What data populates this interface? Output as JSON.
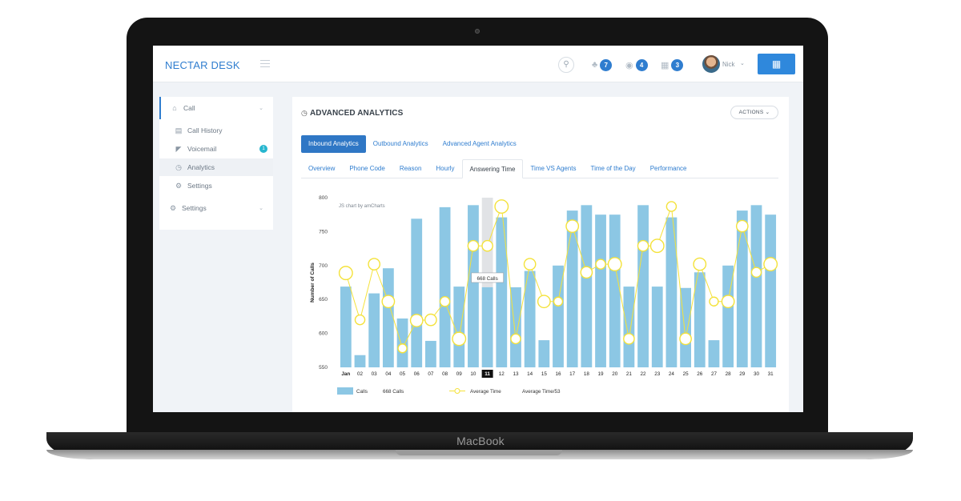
{
  "device": {
    "brand_label": "MacBook"
  },
  "app": {
    "logo": "NECTAR DESK",
    "search_icon": "search-icon",
    "notifications": [
      {
        "icon": "bell-icon",
        "count": "7"
      },
      {
        "icon": "headset-icon",
        "count": "4"
      },
      {
        "icon": "calendar-icon",
        "count": "3"
      }
    ],
    "user": {
      "name": "Nick"
    },
    "apps_icon": "grid-icon"
  },
  "sidebar": {
    "call": {
      "label": "Call",
      "icon": "home-icon"
    },
    "items": [
      {
        "label": "Call History",
        "icon": "list-icon"
      },
      {
        "label": "Voicemail",
        "icon": "voicemail-icon",
        "badge": "1"
      },
      {
        "label": "Analytics",
        "icon": "chart-icon"
      },
      {
        "label": "Settings",
        "icon": "gear-icon"
      }
    ],
    "settings": {
      "label": "Settings",
      "icon": "gear-icon"
    }
  },
  "panel": {
    "title": "ADVANCED ANALYTICS",
    "actions_label": "ACTIONS",
    "tabs": [
      "Inbound Analytics",
      "Outbound Analytics",
      "Advanced Agent Analytics"
    ],
    "active_tab": 0,
    "subtabs": [
      "Overview",
      "Phone Code",
      "Reason",
      "Hourly",
      "Answering Time",
      "Time VS Agents",
      "Time of the Day",
      "Performance"
    ],
    "active_subtab": 4
  },
  "chart_data": {
    "type": "bar",
    "credit": "JS chart by amCharts",
    "ylabel": "Number of Calls",
    "ylim": [
      550,
      800
    ],
    "yticks": [
      550,
      600,
      650,
      700,
      750,
      800
    ],
    "categories": [
      "Jan",
      "02",
      "03",
      "04",
      "05",
      "06",
      "07",
      "08",
      "09",
      "10",
      "11",
      "12",
      "13",
      "14",
      "15",
      "16",
      "17",
      "18",
      "19",
      "20",
      "21",
      "22",
      "23",
      "24",
      "25",
      "26",
      "27",
      "28",
      "29",
      "30",
      "31"
    ],
    "highlighted_category": "11",
    "series": [
      {
        "name": "Calls",
        "type": "bar",
        "color": "#8cc7e4",
        "values": [
          669,
          568,
          659,
          696,
          622,
          769,
          589,
          786,
          669,
          789,
          668,
          771,
          668,
          692,
          590,
          700,
          781,
          789,
          775,
          775,
          669,
          789,
          669,
          771,
          667,
          690,
          590,
          700,
          781,
          789,
          775
        ]
      },
      {
        "name": "Average Time",
        "type": "line",
        "color": "#f4e23a",
        "values": [
          689,
          620,
          702,
          647,
          578,
          619,
          620,
          647,
          592,
          729,
          729,
          787,
          592,
          702,
          647,
          647,
          758,
          690,
          702,
          702,
          592,
          729,
          729,
          787,
          592,
          702,
          647,
          647,
          758,
          690,
          702
        ]
      }
    ],
    "tooltip": "668 Calls",
    "legend": [
      {
        "label": "Calls",
        "value": "668 Calls"
      },
      {
        "label": "Average Time",
        "value": "Average Time/53"
      }
    ],
    "legend_position": "bottom-left"
  }
}
